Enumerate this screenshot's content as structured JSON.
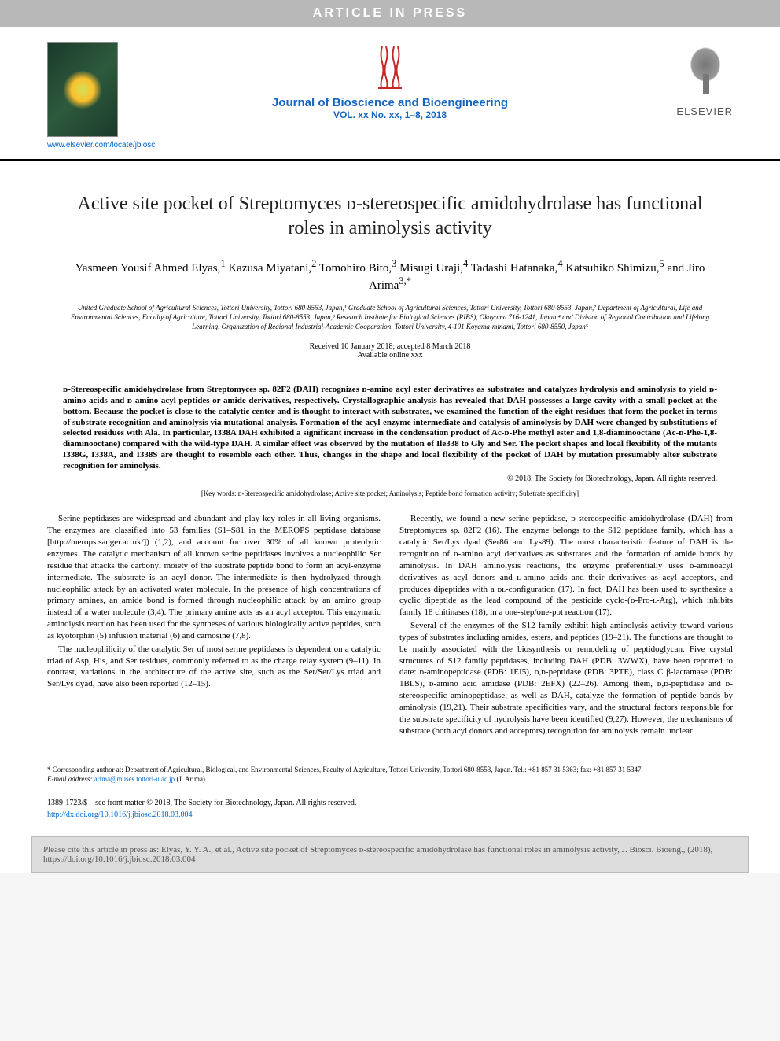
{
  "banner": "ARTICLE IN PRESS",
  "site_url": "www.elsevier.com/locate/jbiosc",
  "journal": {
    "name": "Journal of Bioscience and Bioengineering",
    "vol": "VOL. xx No. xx, 1–8, 2018"
  },
  "publisher": "ELSEVIER",
  "title": "Active site pocket of Streptomyces ᴅ-stereospecific amidohydrolase has functional roles in aminolysis activity",
  "authors_html": "Yasmeen Yousif Ahmed Elyas,<sup>1</sup> Kazusa Miyatani,<sup>2</sup> Tomohiro Bito,<sup>3</sup> Misugi Uraji,<sup>4</sup> Tadashi Hatanaka,<sup>4</sup> Katsuhiko Shimizu,<sup>5</sup> and Jiro Arima<sup>3,*</sup>",
  "affiliations": "United Graduate School of Agricultural Sciences, Tottori University, Tottori 680-8553, Japan,¹ Graduate School of Agricultural Sciences, Tottori University, Tottori 680-8553, Japan,² Department of Agricultural, Life and Environmental Sciences, Faculty of Agriculture, Tottori University, Tottori 680-8553, Japan,³ Research Institute for Biological Sciences (RIBS), Okayama 716-1241, Japan,⁴ and Division of Regional Contribution and Lifelong Learning, Organization of Regional Industrial-Academic Cooperation, Tottori University, 4-101 Koyama-minami, Tottori 680-8550, Japan⁵",
  "dates": {
    "received": "Received 10 January 2018; accepted 8 March 2018",
    "online": "Available online xxx"
  },
  "abstract": "ᴅ-Stereospecific amidohydrolase from Streptomyces sp. 82F2 (DAH) recognizes ᴅ-amino acyl ester derivatives as substrates and catalyzes hydrolysis and aminolysis to yield ᴅ-amino acids and ᴅ-amino acyl peptides or amide derivatives, respectively. Crystallographic analysis has revealed that DAH possesses a large cavity with a small pocket at the bottom. Because the pocket is close to the catalytic center and is thought to interact with substrates, we examined the function of the eight residues that form the pocket in terms of substrate recognition and aminolysis via mutational analysis. Formation of the acyl-enzyme intermediate and catalysis of aminolysis by DAH were changed by substitutions of selected residues with Ala. In particular, I338A DAH exhibited a significant increase in the condensation product of Ac-ᴅ-Phe methyl ester and 1,8-diaminooctane (Ac-ᴅ-Phe-1,8-diaminooctane) compared with the wild-type DAH. A similar effect was observed by the mutation of Ile338 to Gly and Ser. The pocket shapes and local flexibility of the mutants I338G, I338A, and I338S are thought to resemble each other. Thus, changes in the shape and local flexibility of the pocket of DAH by mutation presumably alter substrate recognition for aminolysis.",
  "copyright": "© 2018, The Society for Biotechnology, Japan. All rights reserved.",
  "keywords": "[Key words: ᴅ-Stereospecific amidohydrolase; Active site pocket; Aminolysis; Peptide bond formation activity; Substrate specificity]",
  "body": {
    "left": [
      "Serine peptidases are widespread and abundant and play key roles in all living organisms. The enzymes are classified into 53 families (S1–S81 in the MEROPS peptidase database [http://merops.sanger.ac.uk/]) (1,2), and account for over 30% of all known proteolytic enzymes. The catalytic mechanism of all known serine peptidases involves a nucleophilic Ser residue that attacks the carbonyl moiety of the substrate peptide bond to form an acyl-enzyme intermediate. The substrate is an acyl donor. The intermediate is then hydrolyzed through nucleophilic attack by an activated water molecule. In the presence of high concentrations of primary amines, an amide bond is formed through nucleophilic attack by an amino group instead of a water molecule (3,4). The primary amine acts as an acyl acceptor. This enzymatic aminolysis reaction has been used for the syntheses of various biologically active peptides, such as kyotorphin (5) infusion material (6) and carnosine (7,8).",
      "The nucleophilicity of the catalytic Ser of most serine peptidases is dependent on a catalytic triad of Asp, His, and Ser residues, commonly referred to as the charge relay system (9–11). In contrast, variations in the architecture of the active site, such as the Ser/Ser/Lys triad and Ser/Lys dyad, have also been reported (12–15)."
    ],
    "right": [
      "Recently, we found a new serine peptidase, ᴅ-stereospecific amidohydrolase (DAH) from Streptomyces sp. 82F2 (16). The enzyme belongs to the S12 peptidase family, which has a catalytic Ser/Lys dyad (Ser86 and Lys89). The most characteristic feature of DAH is the recognition of ᴅ-amino acyl derivatives as substrates and the formation of amide bonds by aminolysis. In DAH aminolysis reactions, the enzyme preferentially uses ᴅ-aminoacyl derivatives as acyl donors and ʟ-amino acids and their derivatives as acyl acceptors, and produces dipeptides with a ᴅʟ-configuration (17). In fact, DAH has been used to synthesize a cyclic dipeptide as the lead compound of the pesticide cyclo-(ᴅ-Pro-ʟ-Arg), which inhibits family 18 chitinases (18), in a one-step/one-pot reaction (17).",
      "Several of the enzymes of the S12 family exhibit high aminolysis activity toward various types of substrates including amides, esters, and peptides (19–21). The functions are thought to be mainly associated with the biosynthesis or remodeling of peptidoglycan. Five crystal structures of S12 family peptidases, including DAH (PDB: 3WWX), have been reported to date: ᴅ-aminopeptidase (PDB: 1EI5), ᴅ,ᴅ-peptidase (PDB: 3PTE), class C β-lactamase (PDB: 1BLS), ᴅ-amino acid amidase (PDB: 2EFX) (22–26). Among them, ᴅ,ᴅ-peptidase and ᴅ-stereospecific aminopeptidase, as well as DAH, catalyze the formation of peptide bonds by aminolysis (19,21). Their substrate specificities vary, and the structural factors responsible for the substrate specificity of hydrolysis have been identified (9,27). However, the mechanisms of substrate (both acyl donors and acceptors) recognition for aminolysis remain unclear"
    ]
  },
  "footnote": {
    "corr": "* Corresponding author at: Department of Agricultural, Biological, and Environmental Sciences, Faculty of Agriculture, Tottori University, Tottori 680-8553, Japan. Tel.: +81 857 31 5363; fax: +81 857 31 5347.",
    "email_label": "E-mail address:",
    "email": "arima@muses.tottori-u.ac.jp",
    "email_name": "(J. Arima)."
  },
  "issn": "1389-1723/$ – see front matter © 2018, The Society for Biotechnology, Japan. All rights reserved.",
  "doi": "http://dx.doi.org/10.1016/j.jbiosc.2018.03.004",
  "citebox": "Please cite this article in press as: Elyas, Y. Y. A., et al., Active site pocket of Streptomyces ᴅ-stereospecific amidohydrolase has functional roles in aminolysis activity, J. Biosci. Bioeng., (2018), https://doi.org/10.1016/j.jbiosc.2018.03.004",
  "colors": {
    "link": "#0066cc",
    "journal": "#1565c0",
    "banner_bg": "#b8b8b8"
  }
}
